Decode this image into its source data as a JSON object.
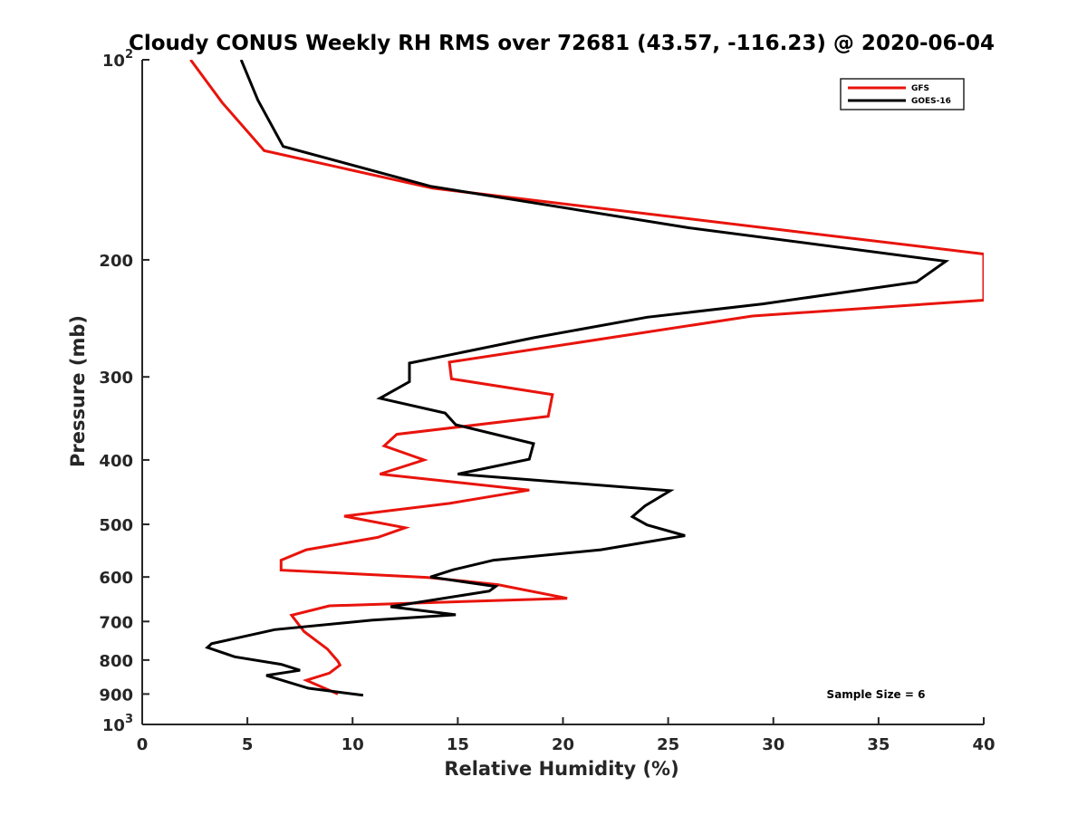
{
  "chart_data": {
    "type": "line",
    "title": "Cloudy CONUS Weekly RH RMS over 72681 (43.57, -116.23) @ 2020-06-04",
    "xlabel": "Relative Humidity (%)",
    "ylabel": "Pressure (mb)",
    "xlim": [
      0,
      40
    ],
    "ylim": [
      100,
      1000
    ],
    "y_scale": "log",
    "y_reversed": true,
    "grid": false,
    "legend_position": "top-right",
    "x_ticks": [
      "0",
      "5",
      "10",
      "15",
      "20",
      "25",
      "30",
      "35",
      "40"
    ],
    "y_ticks": [
      {
        "value": 100,
        "label": "10",
        "sup": "2"
      },
      {
        "value": 200,
        "label": "200",
        "sup": ""
      },
      {
        "value": 300,
        "label": "300",
        "sup": ""
      },
      {
        "value": 400,
        "label": "400",
        "sup": ""
      },
      {
        "value": 500,
        "label": "500",
        "sup": ""
      },
      {
        "value": 600,
        "label": "600",
        "sup": ""
      },
      {
        "value": 700,
        "label": "700",
        "sup": ""
      },
      {
        "value": 800,
        "label": "800",
        "sup": ""
      },
      {
        "value": 900,
        "label": "900",
        "sup": ""
      },
      {
        "value": 1000,
        "label": "10",
        "sup": "3"
      }
    ],
    "annotation": "Sample Size = 6",
    "series": [
      {
        "name": "GFS",
        "color": "#e8140c",
        "points": [
          [
            2.3,
            100
          ],
          [
            3.8,
            116
          ],
          [
            5.8,
            137
          ],
          [
            13.8,
            156
          ],
          [
            40.0,
            196
          ],
          [
            40.0,
            230
          ],
          [
            29.0,
            243
          ],
          [
            20.5,
            267
          ],
          [
            14.6,
            285
          ],
          [
            14.7,
            302
          ],
          [
            19.5,
            319
          ],
          [
            19.3,
            344
          ],
          [
            12.1,
            366
          ],
          [
            11.5,
            381
          ],
          [
            13.4,
            400
          ],
          [
            11.3,
            420
          ],
          [
            18.4,
            444
          ],
          [
            14.6,
            465
          ],
          [
            9.6,
            486
          ],
          [
            12.5,
            506
          ],
          [
            11.2,
            523
          ],
          [
            7.8,
            546
          ],
          [
            6.6,
            566
          ],
          [
            6.6,
            586
          ],
          [
            13.6,
            601
          ],
          [
            16.9,
            616
          ],
          [
            20.2,
            646
          ],
          [
            8.9,
            663
          ],
          [
            7.1,
            685
          ],
          [
            7.7,
            725
          ],
          [
            8.8,
            770
          ],
          [
            9.3,
            803
          ],
          [
            9.4,
            814
          ],
          [
            8.9,
            837
          ],
          [
            7.8,
            858
          ],
          [
            9.3,
            900
          ]
        ]
      },
      {
        "name": "GOES-16",
        "color": "#000000",
        "points": [
          [
            4.7,
            100
          ],
          [
            5.5,
            115
          ],
          [
            6.7,
            135
          ],
          [
            13.7,
            155
          ],
          [
            26.0,
            179
          ],
          [
            38.2,
            201
          ],
          [
            36.8,
            216
          ],
          [
            29.5,
            233
          ],
          [
            24.0,
            244
          ],
          [
            18.6,
            262
          ],
          [
            12.7,
            286
          ],
          [
            12.7,
            305
          ],
          [
            11.3,
            323
          ],
          [
            14.4,
            340
          ],
          [
            14.9,
            354
          ],
          [
            18.6,
            378
          ],
          [
            18.4,
            399
          ],
          [
            15.0,
            420
          ],
          [
            25.1,
            445
          ],
          [
            23.9,
            469
          ],
          [
            23.3,
            487
          ],
          [
            24.0,
            501
          ],
          [
            25.8,
            520
          ],
          [
            21.8,
            546
          ],
          [
            16.7,
            566
          ],
          [
            14.8,
            585
          ],
          [
            13.7,
            600
          ],
          [
            16.8,
            620
          ],
          [
            16.5,
            630
          ],
          [
            11.8,
            665
          ],
          [
            14.9,
            684
          ],
          [
            10.9,
            697
          ],
          [
            6.3,
            720
          ],
          [
            3.3,
            756
          ],
          [
            3.1,
            766
          ],
          [
            4.4,
            791
          ],
          [
            6.6,
            812
          ],
          [
            7.5,
            829
          ],
          [
            5.9,
            844
          ],
          [
            7.9,
            882
          ],
          [
            10.5,
            904
          ]
        ]
      }
    ]
  }
}
